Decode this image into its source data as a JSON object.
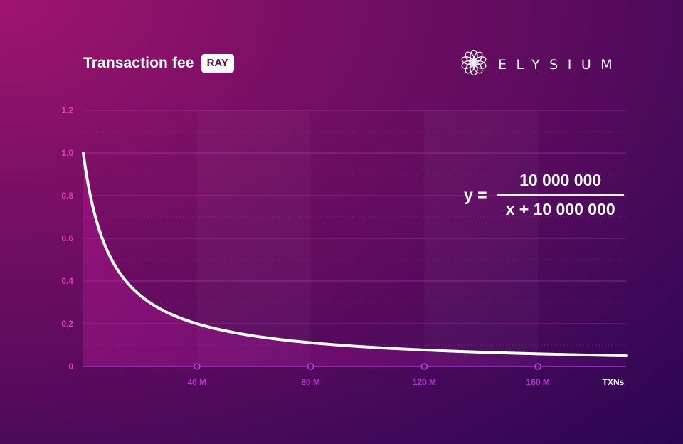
{
  "header": {
    "title": "Transaction fee",
    "badge": "RAY"
  },
  "brand": {
    "name": "ELYSIUM",
    "icon": "elysium-logo-icon"
  },
  "formula": {
    "lhs": "y =",
    "numerator": "10 000 000",
    "denominator": "x + 10 000 000"
  },
  "colors": {
    "curve": "#ffffff",
    "ytick": "#e33fb8",
    "xtick": "#b239c7",
    "grid": "#b93fbf"
  },
  "chart_data": {
    "type": "line",
    "title": "Transaction fee",
    "xlabel": "TXNs",
    "ylabel": "",
    "xlim": [
      0,
      191000000
    ],
    "ylim": [
      0,
      1.2
    ],
    "x_ticks": [
      40000000,
      80000000,
      120000000,
      160000000
    ],
    "x_tick_labels": [
      "40 M",
      "80 M",
      "120 M",
      "160 M"
    ],
    "y_ticks": [
      0,
      0.2,
      0.4,
      0.6,
      0.8,
      1.0,
      1.2
    ],
    "y_tick_labels": [
      "0",
      "0.2",
      "0.4",
      "0.6",
      "0.8",
      "1.0",
      "1.2"
    ],
    "grid": true,
    "series": [
      {
        "function": "y = 10000000 / (x + 10000000)",
        "x": [
          0,
          5000000,
          10000000,
          20000000,
          40000000,
          80000000,
          120000000,
          160000000,
          191000000
        ],
        "y": [
          1.0,
          0.667,
          0.5,
          0.333,
          0.2,
          0.111,
          0.077,
          0.059,
          0.05
        ]
      }
    ]
  }
}
